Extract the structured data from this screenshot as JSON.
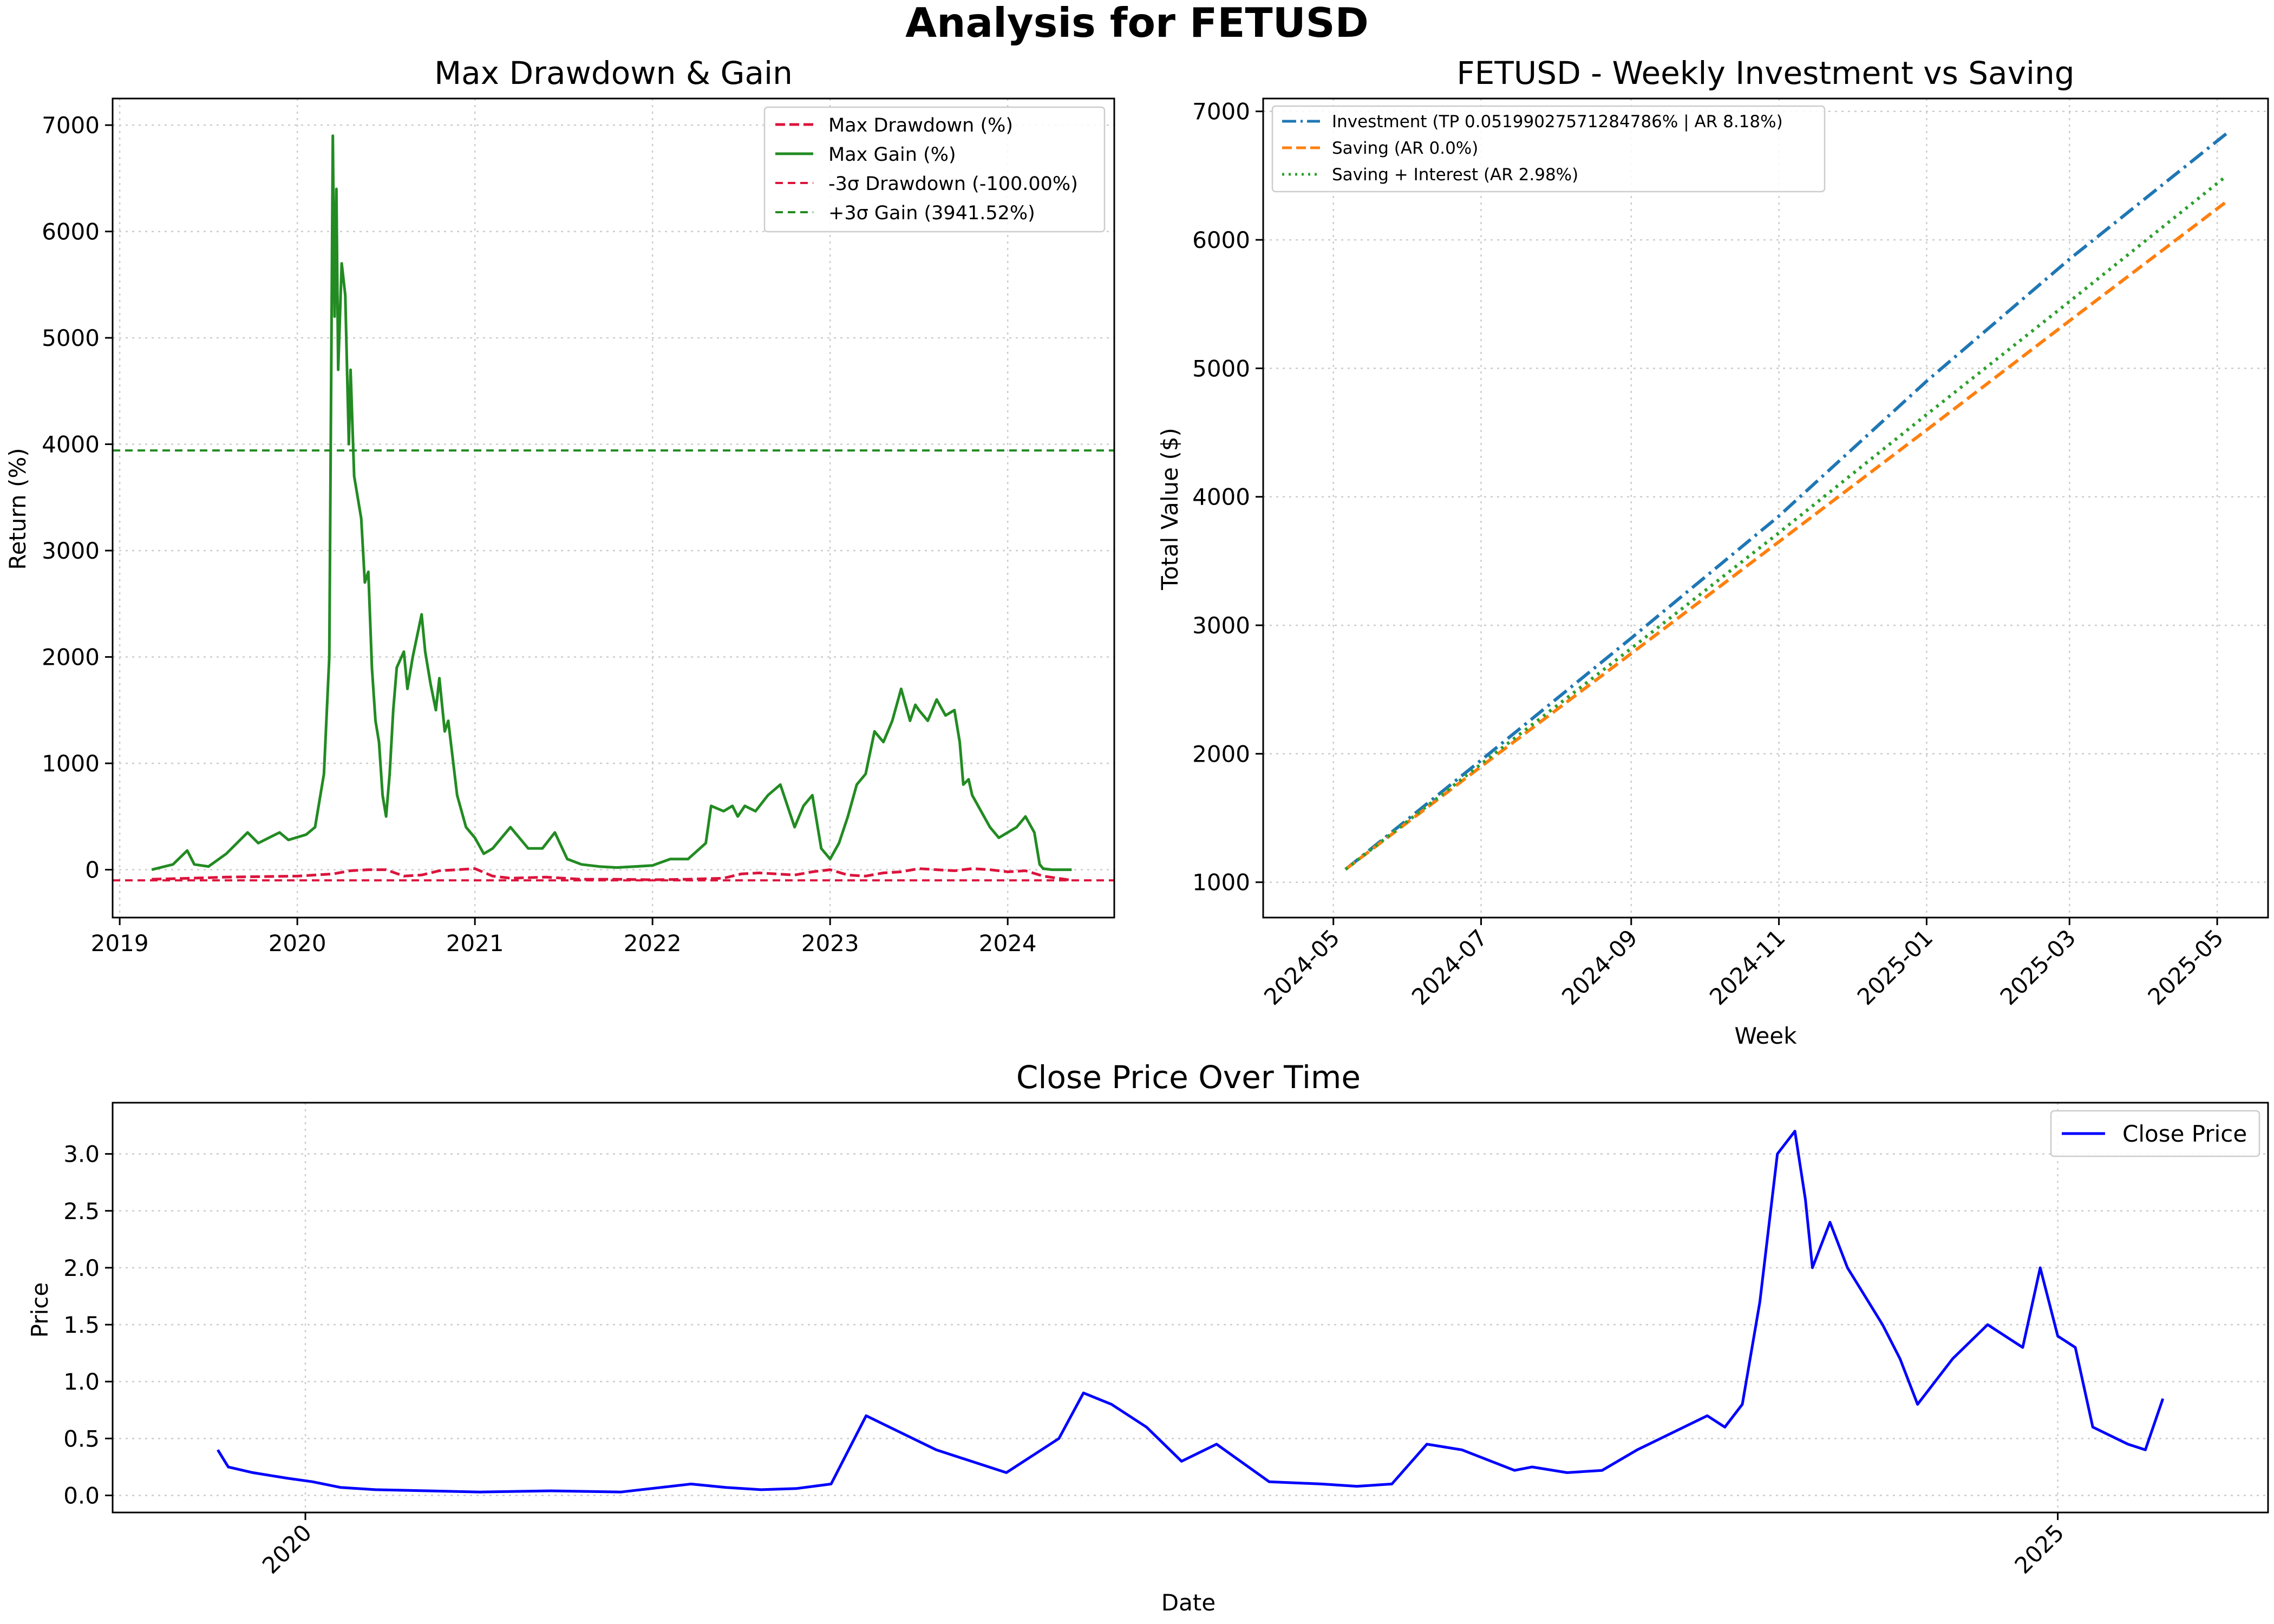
{
  "figure": {
    "title": "Analysis for FETUSD"
  },
  "chart_data": [
    {
      "id": "drawdown",
      "type": "line",
      "title": "Max Drawdown & Gain",
      "xlabel": "",
      "ylabel": "Return (%)",
      "xlim": [
        2018.96,
        2024.6
      ],
      "ylim": [
        -450,
        7250
      ],
      "x_ticks": [
        2019,
        2020,
        2021,
        2022,
        2023,
        2024
      ],
      "y_ticks": [
        0,
        1000,
        2000,
        3000,
        4000,
        5000,
        6000,
        7000
      ],
      "grid": true,
      "legend_position": "top-right",
      "colors": {
        "drawdown": "#dc143c",
        "gain": "#228b22",
        "sigma_dd": "#dc143c",
        "sigma_gain": "#228b22"
      },
      "legend": [
        "Max Drawdown (%)",
        "Max Gain (%)",
        "-3σ Drawdown (-100.00%)",
        "+3σ Gain (3941.52%)"
      ],
      "hlines": {
        "drawdown_3sigma": -100.0,
        "gain_3sigma": 3941.52
      },
      "series": [
        {
          "name": "Max Gain (%)",
          "x": [
            2019.18,
            2019.3,
            2019.38,
            2019.42,
            2019.5,
            2019.6,
            2019.72,
            2019.78,
            2019.9,
            2019.95,
            2020.05,
            2020.1,
            2020.15,
            2020.18,
            2020.2,
            2020.21,
            2020.22,
            2020.23,
            2020.25,
            2020.27,
            2020.29,
            2020.3,
            2020.32,
            2020.34,
            2020.36,
            2020.38,
            2020.4,
            2020.42,
            2020.44,
            2020.46,
            2020.48,
            2020.5,
            2020.52,
            2020.54,
            2020.56,
            2020.6,
            2020.62,
            2020.65,
            2020.7,
            2020.72,
            2020.75,
            2020.78,
            2020.8,
            2020.83,
            2020.85,
            2020.9,
            2020.95,
            2021.0,
            2021.05,
            2021.1,
            2021.15,
            2021.2,
            2021.3,
            2021.38,
            2021.45,
            2021.52,
            2021.6,
            2021.7,
            2021.8,
            2021.9,
            2022.0,
            2022.1,
            2022.2,
            2022.3,
            2022.33,
            2022.4,
            2022.45,
            2022.48,
            2022.52,
            2022.58,
            2022.65,
            2022.72,
            2022.8,
            2022.85,
            2022.9,
            2022.95,
            2023.0,
            2023.05,
            2023.1,
            2023.15,
            2023.2,
            2023.25,
            2023.3,
            2023.35,
            2023.4,
            2023.45,
            2023.48,
            2023.5,
            2023.55,
            2023.6,
            2023.65,
            2023.7,
            2023.73,
            2023.75,
            2023.78,
            2023.8,
            2023.85,
            2023.9,
            2023.95,
            2024.0,
            2024.05,
            2024.1,
            2024.15,
            2024.18,
            2024.2,
            2024.25,
            2024.3,
            2024.36
          ],
          "values": [
            0,
            50,
            180,
            50,
            30,
            150,
            350,
            250,
            350,
            280,
            330,
            400,
            900,
            2000,
            6900,
            5200,
            6400,
            4700,
            5700,
            5400,
            4000,
            4700,
            3700,
            3500,
            3300,
            2700,
            2800,
            1900,
            1400,
            1200,
            700,
            500,
            900,
            1500,
            1900,
            2050,
            1700,
            2000,
            2400,
            2050,
            1750,
            1500,
            1800,
            1300,
            1400,
            700,
            400,
            300,
            150,
            200,
            300,
            400,
            200,
            200,
            350,
            100,
            50,
            30,
            20,
            30,
            40,
            100,
            100,
            250,
            600,
            550,
            600,
            500,
            600,
            550,
            700,
            800,
            400,
            600,
            700,
            200,
            100,
            250,
            500,
            800,
            900,
            1300,
            1200,
            1400,
            1700,
            1400,
            1550,
            1500,
            1400,
            1600,
            1450,
            1500,
            1200,
            800,
            850,
            700,
            550,
            400,
            300,
            350,
            400,
            500,
            350,
            50,
            10,
            0,
            0,
            0
          ]
        },
        {
          "name": "Max Drawdown (%)",
          "x": [
            2019.18,
            2019.4,
            2019.6,
            2019.8,
            2020.0,
            2020.2,
            2020.3,
            2020.4,
            2020.5,
            2020.6,
            2020.7,
            2020.8,
            2020.9,
            2021.0,
            2021.1,
            2021.2,
            2021.4,
            2021.6,
            2021.8,
            2022.0,
            2022.2,
            2022.4,
            2022.5,
            2022.6,
            2022.7,
            2022.8,
            2022.9,
            2023.0,
            2023.1,
            2023.2,
            2023.3,
            2023.4,
            2023.5,
            2023.6,
            2023.7,
            2023.8,
            2023.9,
            2024.0,
            2024.1,
            2024.2,
            2024.36
          ],
          "values": [
            -90,
            -80,
            -70,
            -65,
            -60,
            -40,
            -10,
            0,
            0,
            -60,
            -50,
            -10,
            0,
            10,
            -60,
            -80,
            -70,
            -90,
            -90,
            -95,
            -90,
            -80,
            -40,
            -30,
            -40,
            -50,
            -20,
            0,
            -50,
            -60,
            -30,
            -20,
            10,
            0,
            -10,
            10,
            0,
            -20,
            -10,
            -60,
            -100
          ]
        }
      ]
    },
    {
      "id": "investment",
      "type": "line",
      "title": "FETUSD - Weekly Investment vs Saving",
      "xlabel": "Week",
      "ylabel": "Total Value ($)",
      "x_ticks": [
        "2024-05",
        "2024-07",
        "2024-09",
        "2024-11",
        "2025-01",
        "2025-03",
        "2025-05"
      ],
      "y_ticks": [
        1000,
        2000,
        3000,
        4000,
        5000,
        6000,
        7000
      ],
      "ylim": [
        725,
        7100
      ],
      "grid": true,
      "legend_position": "top-left",
      "colors": {
        "investment": "#1f77b4",
        "saving": "#ff7f0e",
        "interest": "#2ca02c"
      },
      "series": [
        {
          "name": "Investment (TP 0.05199027571284786% | AR 8.18%)",
          "x": [
            "2024-05-06",
            "2024-07-01",
            "2024-09-01",
            "2024-11-01",
            "2025-01-01",
            "2025-03-01",
            "2025-05-05"
          ],
          "values": [
            1100,
            1950,
            2900,
            3850,
            4900,
            5850,
            6830
          ]
        },
        {
          "name": "Saving (AR 0.0%)",
          "x": [
            "2024-05-06",
            "2024-07-01",
            "2024-09-01",
            "2024-11-01",
            "2025-01-01",
            "2025-03-01",
            "2025-05-05"
          ],
          "values": [
            1100,
            1900,
            2780,
            3650,
            4520,
            5370,
            6300
          ]
        },
        {
          "name": "Saving + Interest (AR 2.98%)",
          "x": [
            "2024-05-06",
            "2024-07-01",
            "2024-09-01",
            "2024-11-01",
            "2025-01-01",
            "2025-03-01",
            "2025-05-05"
          ],
          "values": [
            1100,
            1920,
            2820,
            3720,
            4640,
            5520,
            6500
          ]
        }
      ]
    },
    {
      "id": "close",
      "type": "line",
      "title": "Close Price Over Time",
      "xlabel": "Date",
      "ylabel": "Price",
      "xlim": [
        2019.45,
        2025.6
      ],
      "ylim": [
        -0.15,
        3.45
      ],
      "x_ticks": [
        2020,
        2025
      ],
      "y_ticks": [
        "0.0",
        "0.5",
        "1.0",
        "1.5",
        "2.0",
        "2.5",
        "3.0"
      ],
      "grid": true,
      "legend_position": "top-right",
      "colors": {
        "close": "#0000ff"
      },
      "series": [
        {
          "name": "Close Price",
          "x": [
            2019.75,
            2019.78,
            2019.85,
            2019.95,
            2020.02,
            2020.1,
            2020.2,
            2020.35,
            2020.5,
            2020.7,
            2020.9,
            2021.1,
            2021.2,
            2021.3,
            2021.4,
            2021.5,
            2021.6,
            2021.8,
            2022.0,
            2022.15,
            2022.22,
            2022.3,
            2022.4,
            2022.5,
            2022.6,
            2022.75,
            2022.9,
            2023.0,
            2023.1,
            2023.2,
            2023.3,
            2023.45,
            2023.5,
            2023.6,
            2023.7,
            2023.8,
            2023.9,
            2024.0,
            2024.05,
            2024.1,
            2024.15,
            2024.2,
            2024.25,
            2024.28,
            2024.3,
            2024.35,
            2024.4,
            2024.5,
            2024.55,
            2024.6,
            2024.7,
            2024.8,
            2024.9,
            2024.95,
            2025.0,
            2025.05,
            2025.1,
            2025.2,
            2025.25,
            2025.3
          ],
          "values": [
            0.4,
            0.25,
            0.2,
            0.15,
            0.12,
            0.07,
            0.05,
            0.04,
            0.03,
            0.04,
            0.03,
            0.1,
            0.07,
            0.05,
            0.06,
            0.1,
            0.7,
            0.4,
            0.2,
            0.5,
            0.9,
            0.8,
            0.6,
            0.3,
            0.45,
            0.12,
            0.1,
            0.08,
            0.1,
            0.45,
            0.4,
            0.22,
            0.25,
            0.2,
            0.22,
            0.4,
            0.55,
            0.7,
            0.6,
            0.8,
            1.7,
            3.0,
            3.2,
            2.6,
            2.0,
            2.4,
            2.0,
            1.5,
            1.2,
            0.8,
            1.2,
            1.5,
            1.3,
            2.0,
            1.4,
            1.3,
            0.6,
            0.45,
            0.4,
            0.85
          ]
        }
      ]
    }
  ]
}
